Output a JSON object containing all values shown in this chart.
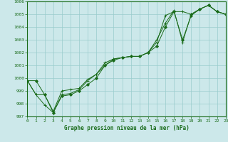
{
  "xlabel": "Graphe pression niveau de la mer (hPa)",
  "ylim": [
    997,
    1006
  ],
  "xlim": [
    0,
    23
  ],
  "yticks": [
    997,
    998,
    999,
    1000,
    1001,
    1002,
    1003,
    1004,
    1005,
    1006
  ],
  "xticks": [
    0,
    1,
    2,
    3,
    4,
    5,
    6,
    7,
    8,
    9,
    10,
    11,
    12,
    13,
    14,
    15,
    16,
    17,
    18,
    19,
    20,
    21,
    22,
    23
  ],
  "background_color": "#cce8ea",
  "grid_color": "#99cccc",
  "line_color": "#1a6b1a",
  "series": [
    {
      "x": [
        0,
        1,
        2,
        3,
        4,
        5,
        6,
        7,
        8,
        9,
        10,
        11,
        12,
        13,
        14,
        15,
        16,
        17,
        18,
        19,
        20,
        21,
        22,
        23
      ],
      "y": [
        999.8,
        998.7,
        998.7,
        997.4,
        999.0,
        999.1,
        999.2,
        999.9,
        1000.3,
        1001.2,
        1001.5,
        1001.6,
        1001.7,
        1001.7,
        1002.0,
        1002.8,
        1004.9,
        1005.2,
        1005.2,
        1005.0,
        1005.4,
        1005.7,
        1005.2,
        1005.0
      ],
      "marker": "+",
      "markersize": 3
    },
    {
      "x": [
        0,
        1,
        2,
        3,
        4,
        5,
        6,
        7,
        8,
        9,
        10,
        11,
        12,
        13,
        14,
        15,
        16,
        17,
        18,
        19,
        20,
        21,
        22,
        23
      ],
      "y": [
        999.8,
        998.7,
        997.9,
        997.3,
        998.7,
        998.8,
        999.1,
        999.8,
        1000.3,
        1001.0,
        1001.5,
        1001.6,
        1001.7,
        1001.7,
        1002.0,
        1003.0,
        1004.3,
        1005.3,
        1002.8,
        1005.0,
        1005.4,
        1005.7,
        1005.2,
        1005.0
      ],
      "marker": "+",
      "markersize": 3
    },
    {
      "x": [
        0,
        1,
        2,
        3,
        4,
        5,
        6,
        7,
        8,
        9,
        10,
        11,
        12,
        13,
        14,
        15,
        16,
        17,
        18,
        19,
        20,
        21,
        22,
        23
      ],
      "y": [
        999.8,
        999.8,
        998.7,
        997.3,
        998.6,
        998.7,
        999.0,
        999.5,
        1000.0,
        1001.0,
        1001.4,
        1001.6,
        1001.7,
        1001.7,
        1002.0,
        1002.5,
        1004.0,
        1005.2,
        1003.0,
        1004.9,
        1005.4,
        1005.7,
        1005.2,
        1005.0
      ],
      "marker": "D",
      "markersize": 2
    }
  ]
}
